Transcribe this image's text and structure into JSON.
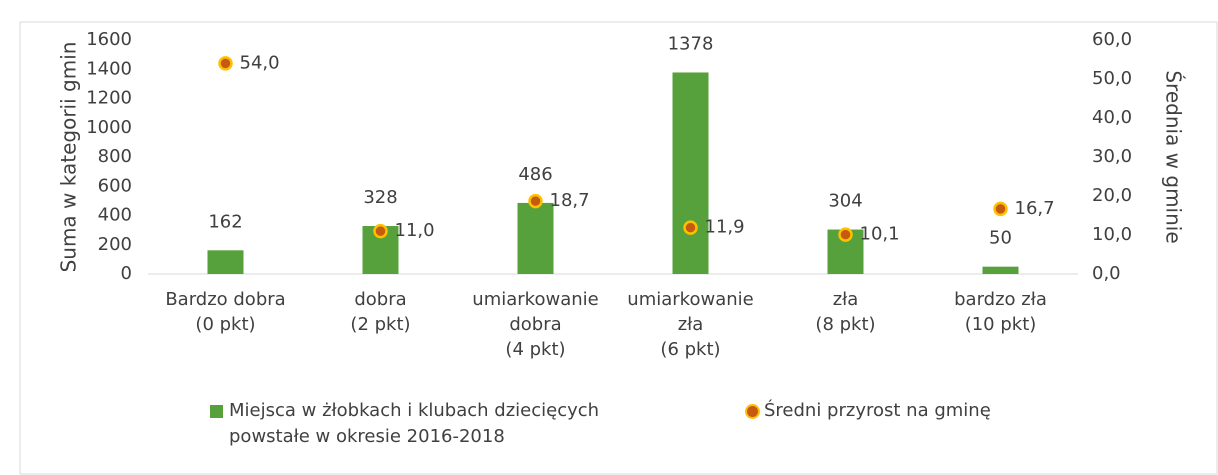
{
  "chart_data": {
    "type": "bar",
    "y_label": "Suma w kategorii gmin",
    "y2_label": "Średnia w gminie",
    "categories": [
      [
        "Bardzo dobra",
        "(0 pkt)"
      ],
      [
        "dobra",
        "(2 pkt)"
      ],
      [
        "umiarkowanie",
        "dobra",
        "(4 pkt)"
      ],
      [
        "umiarkowanie",
        "zła",
        "(6 pkt)"
      ],
      [
        "zła",
        "(8 pkt)"
      ],
      [
        "bardzo zła",
        "(10 pkt)"
      ]
    ],
    "series": [
      {
        "name": "Miejsca w żłobkach i klubach dziecięcych powstałe w okresie 2016-2018",
        "type": "bar",
        "color": "#56a13b",
        "values": [
          162,
          328,
          486,
          1378,
          304,
          50
        ]
      },
      {
        "name": "Średni przyrost na gminę",
        "type": "scatter",
        "axis": "y2",
        "color": "#c55a11",
        "values": [
          54.0,
          11.0,
          18.7,
          11.9,
          10.1,
          16.7
        ],
        "value_labels": [
          "54,0",
          "11,0",
          "18,7",
          "11,9",
          "10,1",
          "16,7"
        ]
      }
    ],
    "ylim": [
      0,
      1600
    ],
    "yticks": [
      0,
      200,
      400,
      600,
      800,
      1000,
      1200,
      1400,
      1600
    ],
    "y2lim": [
      0,
      60
    ],
    "y2ticks": [
      {
        "value": 0,
        "label": "0,0"
      },
      {
        "value": 10,
        "label": "10,0"
      },
      {
        "value": 20,
        "label": "20,0"
      },
      {
        "value": 30,
        "label": "30,0"
      },
      {
        "value": 40,
        "label": "40,0"
      },
      {
        "value": 50,
        "label": "50,0"
      },
      {
        "value": 60,
        "label": "60,0"
      }
    ],
    "grid": false
  }
}
